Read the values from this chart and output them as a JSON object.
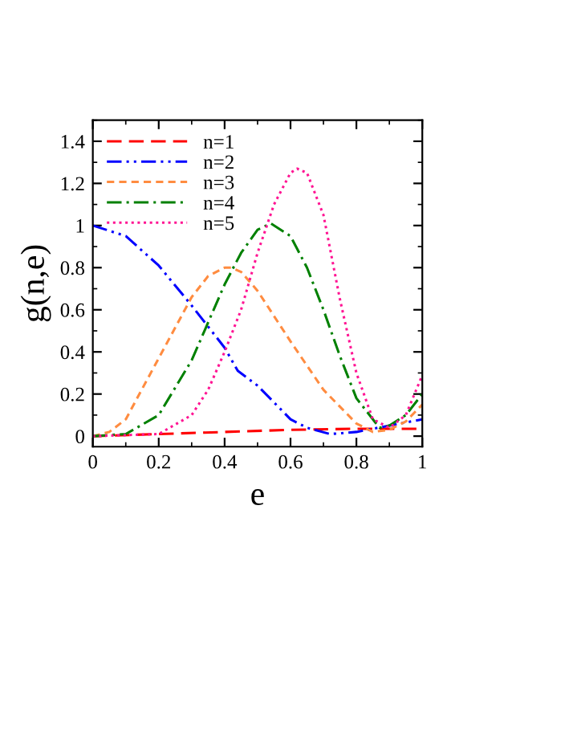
{
  "chart_data": {
    "type": "line",
    "xlabel": "e",
    "ylabel": "g(n,e)",
    "xlim": [
      0,
      1
    ],
    "ylim": [
      -0.05,
      1.5
    ],
    "xticks": [
      0,
      0.2,
      0.4,
      0.6,
      0.8,
      1
    ],
    "yticks": [
      0,
      0.2,
      0.4,
      0.6,
      0.8,
      1,
      1.2,
      1.4
    ],
    "grid": false,
    "legend": "top left",
    "marker": "none",
    "series": [
      {
        "name": "n=1",
        "color": "#ff0000",
        "line_style": "dashed",
        "x": [
          0,
          0.2,
          0.4,
          0.6,
          0.8,
          0.9,
          1
        ],
        "values": [
          0,
          0.01,
          0.02,
          0.03,
          0.035,
          0.035,
          0.035
        ]
      },
      {
        "name": "n=2",
        "color": "#0000ff",
        "line_style": "dashdotdot",
        "x": [
          0,
          0.1,
          0.2,
          0.3,
          0.4,
          0.44,
          0.5,
          0.6,
          0.65,
          0.72,
          0.8,
          0.9,
          1
        ],
        "values": [
          1,
          0.95,
          0.81,
          0.62,
          0.42,
          0.31,
          0.24,
          0.08,
          0.04,
          0.01,
          0.02,
          0.05,
          0.08
        ]
      },
      {
        "name": "n=3",
        "color": "#ff8c40",
        "line_style": "dashed_short",
        "x": [
          0,
          0.05,
          0.1,
          0.2,
          0.3,
          0.35,
          0.4,
          0.42,
          0.45,
          0.5,
          0.6,
          0.7,
          0.8,
          0.85,
          0.9,
          0.95,
          1
        ],
        "values": [
          0,
          0.02,
          0.08,
          0.37,
          0.66,
          0.76,
          0.8,
          0.8,
          0.78,
          0.69,
          0.45,
          0.22,
          0.06,
          0.02,
          0.03,
          0.07,
          0.15
        ]
      },
      {
        "name": "n=4",
        "color": "#008000",
        "line_style": "dashdot",
        "x": [
          0,
          0.1,
          0.2,
          0.3,
          0.4,
          0.45,
          0.5,
          0.54,
          0.6,
          0.65,
          0.7,
          0.75,
          0.8,
          0.87,
          0.9,
          0.95,
          1
        ],
        "values": [
          0,
          0.01,
          0.1,
          0.36,
          0.72,
          0.87,
          0.98,
          1.01,
          0.95,
          0.8,
          0.6,
          0.38,
          0.18,
          0.04,
          0.05,
          0.1,
          0.2
        ]
      },
      {
        "name": "n=5",
        "color": "#ff1493",
        "line_style": "dotted",
        "x": [
          0,
          0.2,
          0.3,
          0.35,
          0.4,
          0.45,
          0.5,
          0.55,
          0.6,
          0.62,
          0.65,
          0.7,
          0.75,
          0.8,
          0.85,
          0.9,
          0.95,
          1
        ],
        "values": [
          0,
          0.01,
          0.1,
          0.22,
          0.4,
          0.6,
          0.87,
          1.1,
          1.25,
          1.27,
          1.25,
          1.05,
          0.65,
          0.3,
          0.08,
          0.04,
          0.1,
          0.29
        ]
      }
    ]
  }
}
